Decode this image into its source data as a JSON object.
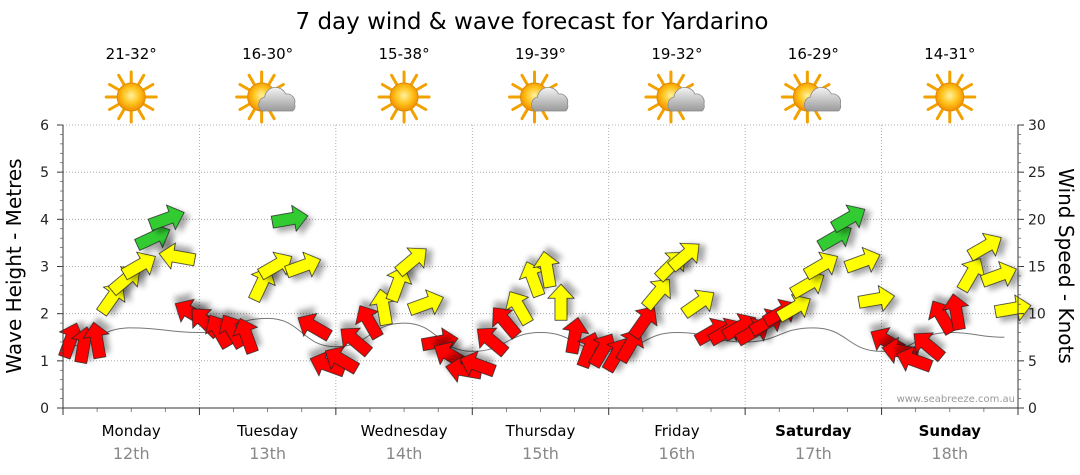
{
  "chart_data": {
    "type": "line",
    "title": "7 day wind & wave forecast for Yardarino",
    "ylabel_left": "Wave Height - Metres",
    "ylabel_right": "Wind Speed - Knots",
    "ylim_left": [
      0,
      6
    ],
    "ylim_right": [
      0,
      30
    ],
    "yticks_left": [
      "0",
      "1",
      "2",
      "3",
      "4",
      "5",
      "6"
    ],
    "yticks_right": [
      "0",
      "5",
      "10",
      "15",
      "20",
      "25",
      "30"
    ],
    "grid": true,
    "watermark": "www.seabreeze.com.au",
    "days": [
      {
        "day": "Monday",
        "date": "12th",
        "temp": "21-32°",
        "weather": "sunny",
        "bold": false
      },
      {
        "day": "Tuesday",
        "date": "13th",
        "temp": "16-30°",
        "weather": "partly-cloudy",
        "bold": false
      },
      {
        "day": "Wednesday",
        "date": "14th",
        "temp": "15-38°",
        "weather": "sunny",
        "bold": false
      },
      {
        "day": "Thursday",
        "date": "15th",
        "temp": "19-39°",
        "weather": "partly-cloudy",
        "bold": false
      },
      {
        "day": "Friday",
        "date": "16th",
        "temp": "19-32°",
        "weather": "partly-cloudy",
        "bold": false
      },
      {
        "day": "Saturday",
        "date": "17th",
        "temp": "16-29°",
        "weather": "partly-cloudy",
        "bold": true
      },
      {
        "day": "Sunday",
        "date": "18th",
        "temp": "14-31°",
        "weather": "sunny",
        "bold": true
      }
    ],
    "colors": {
      "low": "#ff0000",
      "mid": "#ffff00",
      "high": "#33cc33"
    },
    "wind_series": {
      "name": "Wind Speed",
      "unit": "knots",
      "x_day": [
        0.0,
        0.1,
        0.2,
        0.3,
        0.4,
        0.5,
        0.6,
        0.7,
        0.8,
        0.9,
        1.0,
        1.1,
        1.2,
        1.3,
        1.4,
        1.5,
        1.6,
        1.7,
        1.8,
        1.9,
        2.0,
        2.1,
        2.2,
        2.3,
        2.4,
        2.5,
        2.6,
        2.7,
        2.8,
        2.9,
        3.0,
        3.1,
        3.2,
        3.3,
        3.4,
        3.5,
        3.6,
        3.7,
        3.8,
        3.9,
        4.0,
        4.1,
        4.2,
        4.3,
        4.4,
        4.5,
        4.6,
        4.7,
        4.8,
        4.9,
        5.0,
        5.1,
        5.2,
        5.3,
        5.4,
        5.5,
        5.6,
        5.7,
        5.8,
        5.9,
        6.0,
        6.1,
        6.2,
        6.3,
        6.4,
        6.5,
        6.6,
        6.7,
        6.8,
        6.9
      ],
      "speed": [
        7.0,
        6.5,
        7.0,
        11.5,
        13.5,
        15.0,
        18.0,
        20.0,
        16.0,
        10.0,
        9.0,
        8.0,
        8.0,
        7.5,
        13.0,
        15.0,
        20.0,
        15.0,
        8.5,
        4.5,
        5.0,
        7.0,
        9.0,
        10.5,
        13.0,
        15.5,
        11.0,
        7.0,
        5.5,
        4.0,
        4.5,
        7.0,
        9.0,
        10.5,
        13.5,
        14.5,
        11.0,
        7.5,
        6.0,
        6.0,
        5.5,
        6.5,
        9.0,
        12.0,
        15.0,
        16.0,
        11.0,
        8.0,
        8.0,
        8.5,
        8.0,
        9.0,
        10.0,
        10.5,
        13.0,
        15.0,
        18.0,
        20.0,
        15.5,
        11.5,
        7.0,
        6.0,
        5.0,
        6.5,
        9.5,
        10.0,
        14.0,
        17.0,
        14.0,
        10.5
      ],
      "angle_deg": [
        -70,
        -80,
        -100,
        -55,
        -40,
        -30,
        -25,
        -20,
        -170,
        -150,
        -135,
        -120,
        -120,
        -110,
        -65,
        -30,
        -10,
        -20,
        -150,
        -160,
        -150,
        -140,
        -120,
        -100,
        -70,
        -40,
        -20,
        -10,
        -150,
        -170,
        -160,
        -140,
        -130,
        -120,
        -110,
        -100,
        -90,
        -80,
        -70,
        -60,
        -60,
        -60,
        -55,
        -50,
        -45,
        -40,
        -35,
        -30,
        -30,
        -30,
        -30,
        -30,
        -30,
        -30,
        -30,
        -30,
        -30,
        -30,
        -20,
        -10,
        -150,
        -170,
        -160,
        -140,
        -120,
        -100,
        -60,
        -30,
        -20,
        -10
      ]
    },
    "wave_series": {
      "name": "Wave Height",
      "unit": "metres",
      "x_day": [
        0.0,
        0.5,
        1.0,
        1.5,
        2.0,
        2.5,
        3.0,
        3.5,
        4.0,
        4.5,
        5.0,
        5.5,
        6.0,
        6.5,
        6.9
      ],
      "height": [
        1.3,
        1.7,
        1.6,
        1.9,
        1.3,
        1.8,
        1.2,
        1.6,
        1.2,
        1.6,
        1.4,
        1.7,
        1.2,
        1.6,
        1.5
      ]
    }
  }
}
